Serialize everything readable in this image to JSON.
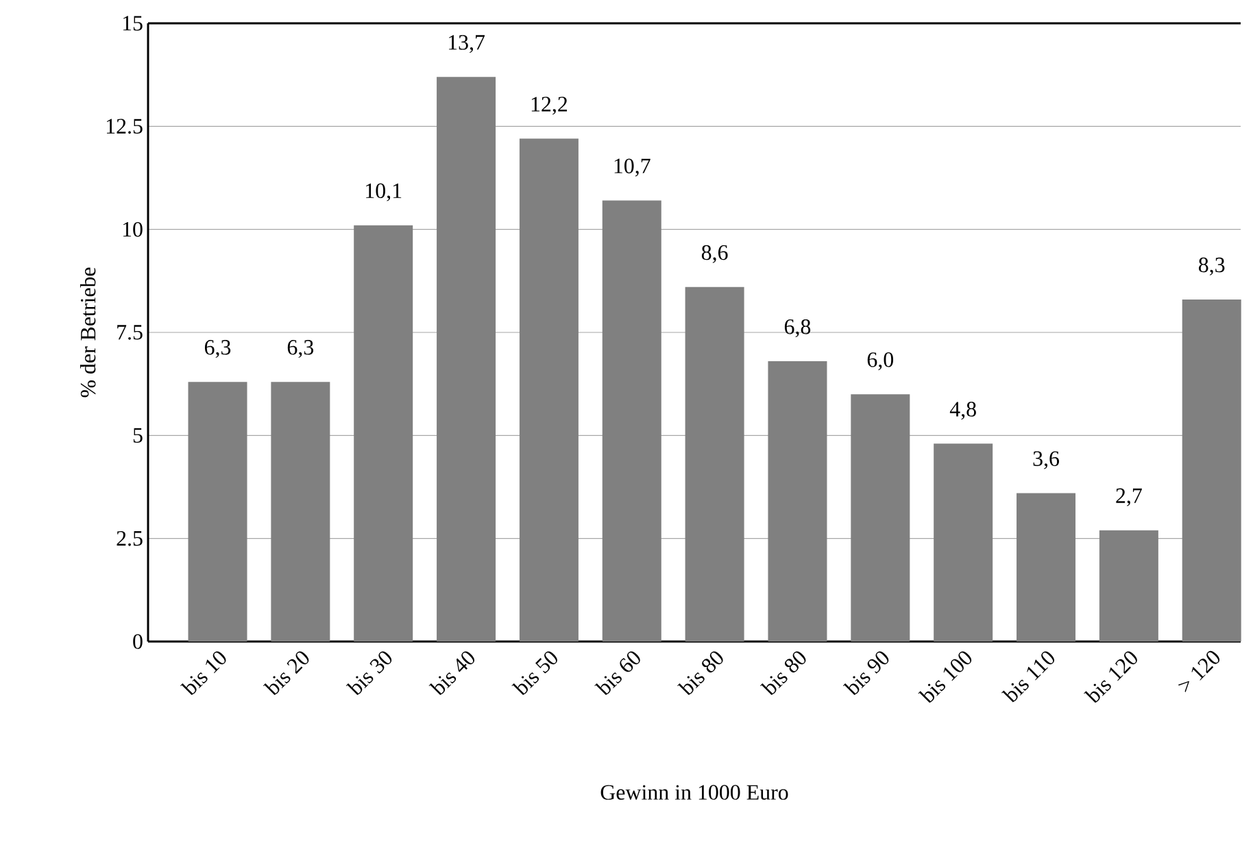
{
  "chart_data": {
    "type": "bar",
    "xlabel": "Gewinn in 1000 Euro",
    "ylabel": "% der Betriebe",
    "categories": [
      "bis 10",
      "bis 20",
      "bis 30",
      "bis 40",
      "bis 50",
      "bis 60",
      "bis 80",
      "bis 80",
      "bis 90",
      "bis 100",
      "bis 110",
      "bis 120",
      "> 120"
    ],
    "values": [
      6.3,
      6.3,
      10.1,
      13.7,
      12.2,
      10.7,
      8.6,
      6.8,
      6.0,
      4.8,
      3.6,
      2.7,
      8.3
    ],
    "value_labels": [
      "6,3",
      "6,3",
      "10,1",
      "13,7",
      "12,2",
      "10,7",
      "8,6",
      "6,8",
      "6,0",
      "4,8",
      "3,6",
      "2,7",
      "8,3"
    ],
    "color": "#808080",
    "ylim": [
      0,
      15
    ],
    "yticks": [
      0,
      2.5,
      5,
      7.5,
      10,
      12.5,
      15
    ],
    "grid": "y"
  }
}
